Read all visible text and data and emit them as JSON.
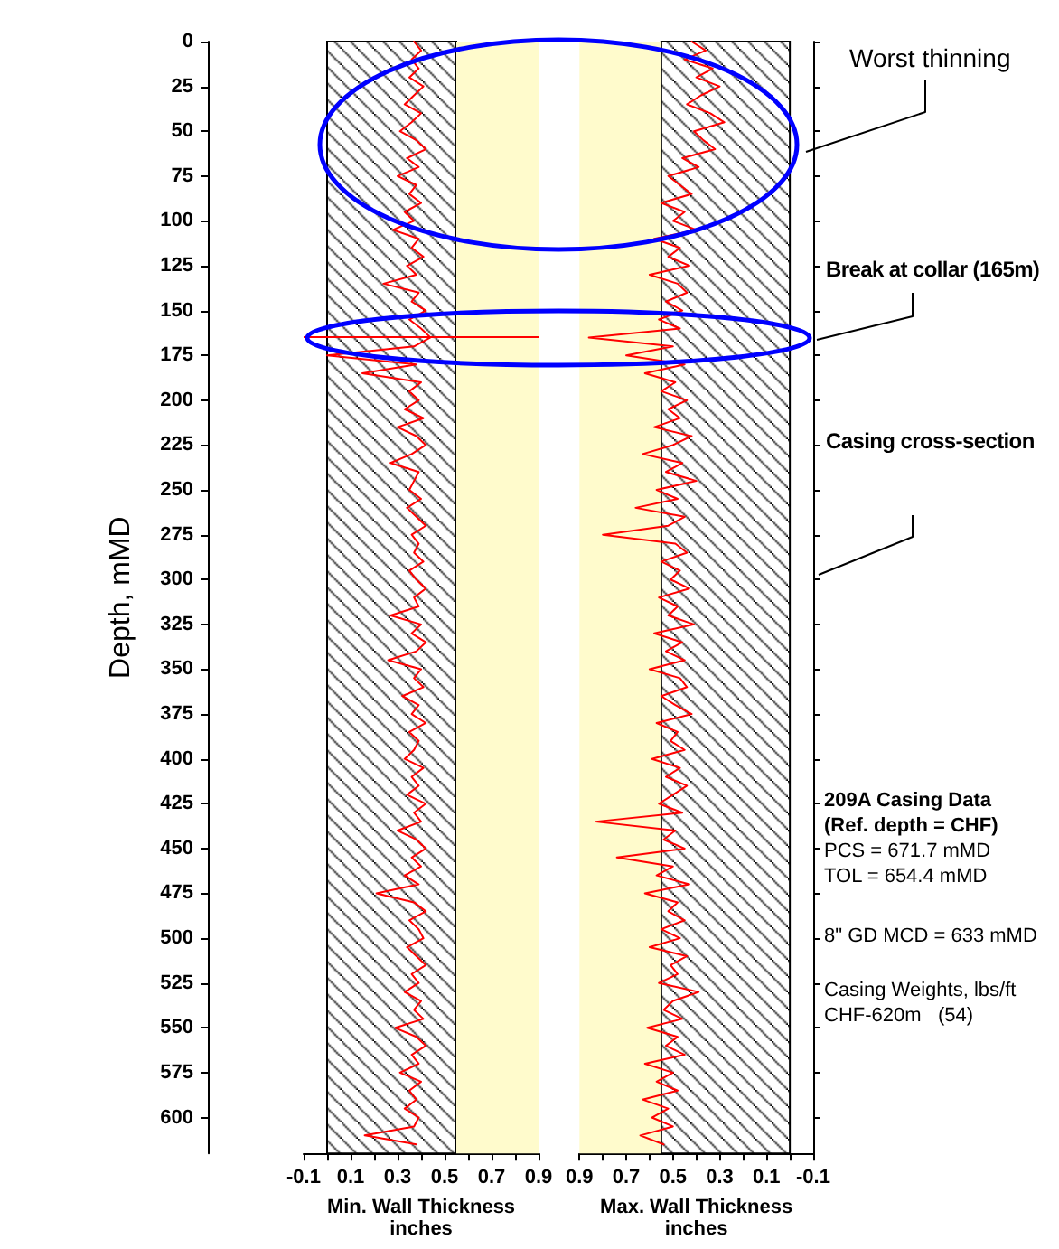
{
  "chart_data": [
    {
      "type": "line",
      "orientation": "horizontal",
      "marker": "none",
      "ylabel": "Depth, mMD",
      "xlabel": "Min. Wall Thickness\ninches",
      "xlim": [
        -0.1,
        0.9
      ],
      "xticks": [
        -0.1,
        {
          "value": 0,
          "label": null
        },
        0.1,
        {
          "value": 0.2,
          "label": null
        },
        0.3,
        {
          "value": 0.4,
          "label": null
        },
        0.5,
        {
          "value": 0.6,
          "label": null
        },
        0.7,
        {
          "value": 0.8,
          "label": null
        },
        0.9
      ],
      "ylim": [
        620,
        0
      ],
      "yticks": [
        0,
        25,
        50,
        75,
        100,
        125,
        150,
        175,
        200,
        225,
        250,
        275,
        300,
        325,
        350,
        375,
        400,
        425,
        450,
        475,
        500,
        525,
        550,
        575,
        600
      ],
      "bands": [
        {
          "axis": "x",
          "from": 0,
          "to": 0.55,
          "color": "#000000"
        },
        {
          "axis": "x",
          "from": 0.55,
          "to": 0.9,
          "color": "#fffbcc"
        }
      ],
      "ref_lines": [
        {
          "axis": "y",
          "value": 165,
          "color": "#ff0000"
        }
      ],
      "series": [
        {
          "color": "#ff0000",
          "x": [
            0,
            5,
            10,
            15,
            20,
            25,
            30,
            35,
            40,
            45,
            50,
            55,
            60,
            65,
            70,
            75,
            80,
            85,
            90,
            95,
            100,
            105,
            110,
            115,
            120,
            125,
            130,
            135,
            140,
            145,
            150,
            155,
            160,
            165,
            170,
            175,
            180,
            185,
            190,
            195,
            200,
            205,
            210,
            215,
            220,
            225,
            230,
            235,
            240,
            245,
            250,
            255,
            260,
            265,
            270,
            275,
            280,
            285,
            290,
            295,
            300,
            305,
            310,
            315,
            320,
            325,
            330,
            335,
            340,
            345,
            350,
            355,
            360,
            365,
            370,
            375,
            380,
            385,
            390,
            395,
            400,
            405,
            410,
            415,
            420,
            425,
            430,
            435,
            440,
            445,
            450,
            455,
            460,
            465,
            470,
            475,
            480,
            485,
            490,
            495,
            500,
            505,
            510,
            515,
            520,
            525,
            530,
            535,
            540,
            545,
            550,
            555,
            560,
            565,
            570,
            575,
            580,
            585,
            590,
            595,
            600,
            605,
            610,
            615
          ],
          "values": [
            0.37,
            0.4,
            0.36,
            0.39,
            0.35,
            0.41,
            0.37,
            0.33,
            0.4,
            0.36,
            0.31,
            0.38,
            0.42,
            0.34,
            0.39,
            0.3,
            0.38,
            0.35,
            0.4,
            0.33,
            0.37,
            0.28,
            0.39,
            0.36,
            0.41,
            0.34,
            0.38,
            0.24,
            0.39,
            0.36,
            0.42,
            0.35,
            0.4,
            0.44,
            0.37,
            0.0,
            0.38,
            0.15,
            0.4,
            0.35,
            0.39,
            0.33,
            0.41,
            0.3,
            0.38,
            0.42,
            0.36,
            0.27,
            0.39,
            0.37,
            0.35,
            0.4,
            0.34,
            0.38,
            0.42,
            0.36,
            0.39,
            0.37,
            0.41,
            0.35,
            0.38,
            0.42,
            0.37,
            0.39,
            0.27,
            0.4,
            0.36,
            0.42,
            0.38,
            0.26,
            0.4,
            0.37,
            0.41,
            0.32,
            0.39,
            0.36,
            0.42,
            0.35,
            0.39,
            0.37,
            0.33,
            0.41,
            0.36,
            0.39,
            0.34,
            0.42,
            0.37,
            0.4,
            0.3,
            0.38,
            0.42,
            0.36,
            0.4,
            0.33,
            0.39,
            0.21,
            0.37,
            0.42,
            0.35,
            0.39,
            0.41,
            0.34,
            0.38,
            0.42,
            0.36,
            0.39,
            0.33,
            0.4,
            0.37,
            0.41,
            0.29,
            0.38,
            0.42,
            0.36,
            0.39,
            0.31,
            0.4,
            0.35,
            0.38,
            0.33,
            0.39,
            0.37,
            0.16,
            0.38
          ]
        }
      ]
    },
    {
      "type": "line",
      "orientation": "horizontal",
      "marker": "none",
      "tick_labels": "x",
      "xlabel": "Max. Wall Thickness\ninches",
      "xlim": [
        0.9,
        -0.1
      ],
      "xticks": [
        0.9,
        {
          "value": 0.8,
          "label": null
        },
        0.7,
        {
          "value": 0.6,
          "label": null
        },
        0.5,
        {
          "value": 0.4,
          "label": null
        },
        0.3,
        {
          "value": 0.2,
          "label": null
        },
        0.1,
        {
          "value": 0,
          "label": null
        },
        -0.1
      ],
      "ylim": [
        620,
        0
      ],
      "yticks": [
        0,
        25,
        50,
        75,
        100,
        125,
        150,
        175,
        200,
        225,
        250,
        275,
        300,
        325,
        350,
        375,
        400,
        425,
        450,
        475,
        500,
        525,
        550,
        575,
        600
      ],
      "bands": [
        {
          "axis": "x",
          "from": 0.55,
          "to": 0,
          "color": "#000000"
        },
        {
          "axis": "x",
          "from": 0.9,
          "to": 0.55,
          "color": "#fffbcc"
        }
      ],
      "annotations": [
        "Worst thinning",
        "Break at collar (165m)",
        "Casing cross-section",
        "209A Casing Data",
        "(Ref. depth = CHF)",
        "PCS = 671.7 mMD",
        "TOL = 654.4 mMD",
        "8\" GD MCD = 633 mMD",
        "Casing Weights, lbs/ft",
        "CHF-620m   (54)"
      ],
      "series": [
        {
          "color": "#ff0000",
          "x": [
            0,
            5,
            10,
            15,
            20,
            25,
            30,
            35,
            40,
            45,
            50,
            55,
            60,
            65,
            70,
            75,
            80,
            85,
            90,
            95,
            100,
            105,
            110,
            115,
            120,
            125,
            130,
            135,
            140,
            145,
            150,
            155,
            160,
            165,
            170,
            175,
            180,
            185,
            190,
            195,
            200,
            205,
            210,
            215,
            220,
            225,
            230,
            235,
            240,
            245,
            250,
            255,
            260,
            265,
            270,
            275,
            280,
            285,
            290,
            295,
            300,
            305,
            310,
            315,
            320,
            325,
            330,
            335,
            340,
            345,
            350,
            355,
            360,
            365,
            370,
            375,
            380,
            385,
            390,
            395,
            400,
            405,
            410,
            415,
            420,
            425,
            430,
            435,
            440,
            445,
            450,
            455,
            460,
            465,
            470,
            475,
            480,
            485,
            490,
            495,
            500,
            505,
            510,
            515,
            520,
            525,
            530,
            535,
            540,
            545,
            550,
            555,
            560,
            565,
            570,
            575,
            580,
            585,
            590,
            595,
            600,
            605,
            610,
            615
          ],
          "values": [
            0.42,
            0.36,
            0.45,
            0.33,
            0.4,
            0.3,
            0.38,
            0.44,
            0.34,
            0.28,
            0.41,
            0.37,
            0.32,
            0.46,
            0.39,
            0.52,
            0.47,
            0.42,
            0.55,
            0.45,
            0.5,
            0.4,
            0.58,
            0.47,
            0.52,
            0.43,
            0.6,
            0.48,
            0.44,
            0.53,
            0.46,
            0.56,
            0.47,
            0.86,
            0.5,
            0.7,
            0.45,
            0.62,
            0.49,
            0.55,
            0.44,
            0.52,
            0.47,
            0.58,
            0.42,
            0.5,
            0.63,
            0.46,
            0.53,
            0.4,
            0.57,
            0.48,
            0.66,
            0.45,
            0.52,
            0.8,
            0.49,
            0.44,
            0.55,
            0.47,
            0.51,
            0.43,
            0.56,
            0.48,
            0.52,
            0.41,
            0.58,
            0.46,
            0.53,
            0.45,
            0.6,
            0.47,
            0.44,
            0.55,
            0.49,
            0.42,
            0.57,
            0.48,
            0.51,
            0.45,
            0.59,
            0.47,
            0.53,
            0.44,
            0.5,
            0.56,
            0.46,
            0.83,
            0.49,
            0.54,
            0.45,
            0.74,
            0.5,
            0.57,
            0.43,
            0.62,
            0.48,
            0.52,
            0.45,
            0.55,
            0.47,
            0.6,
            0.44,
            0.51,
            0.48,
            0.56,
            0.39,
            0.5,
            0.54,
            0.46,
            0.61,
            0.48,
            0.53,
            0.45,
            0.62,
            0.5,
            0.57,
            0.48,
            0.63,
            0.52,
            0.59,
            0.5,
            0.64,
            0.54
          ]
        }
      ]
    }
  ]
}
